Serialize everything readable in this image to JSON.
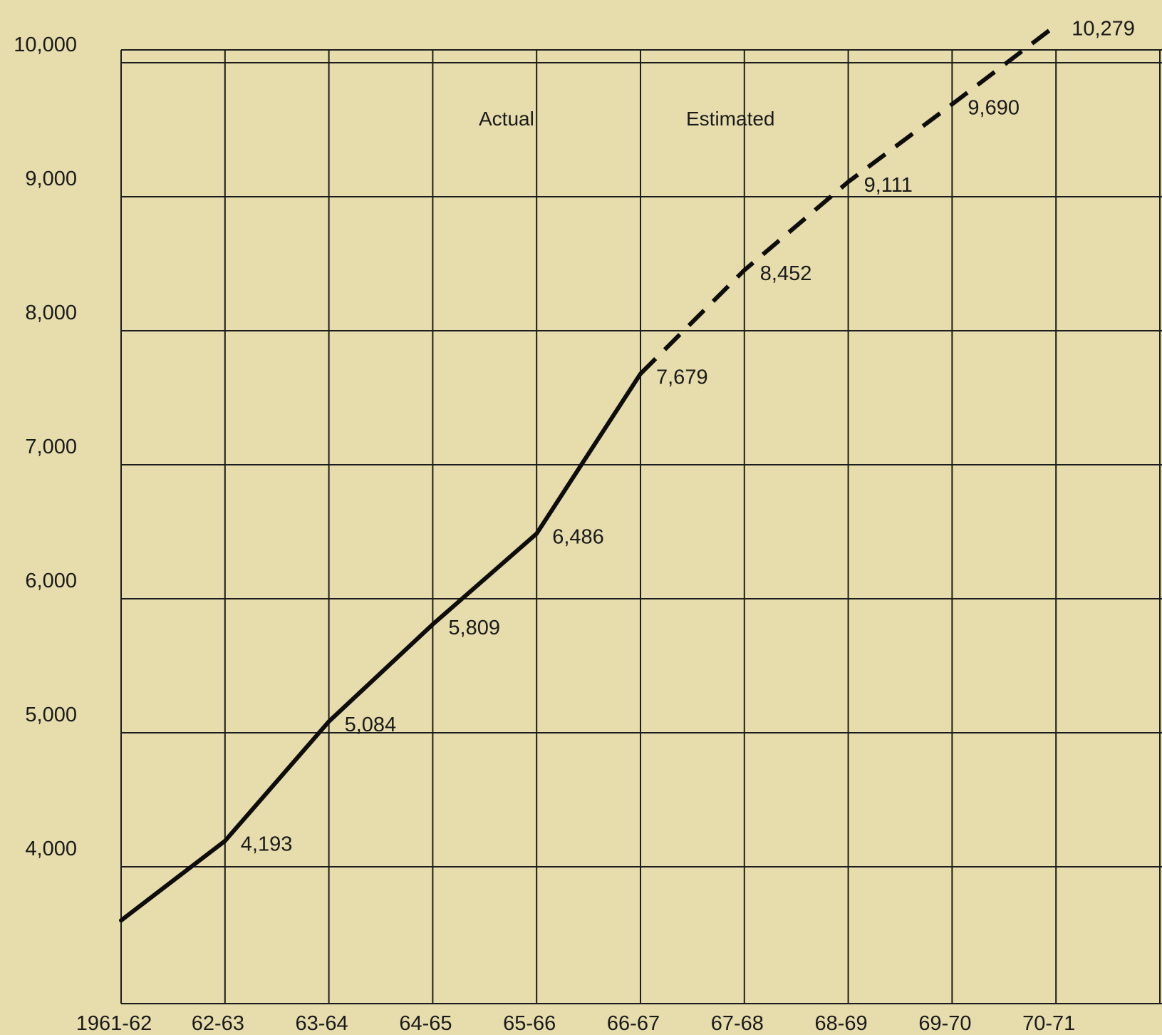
{
  "chart_data": {
    "type": "line",
    "title": "",
    "xlabel": "",
    "ylabel": "",
    "categories": [
      "1961-62",
      "62-63",
      "63-64",
      "64-65",
      "65-66",
      "66-67",
      "67-68",
      "68-69",
      "69-70",
      "70-71"
    ],
    "y_ticks": [
      "4,000",
      "5,000",
      "6,000",
      "7,000",
      "8,000",
      "9,000",
      "10,000"
    ],
    "y_tick_values": [
      4000,
      5000,
      6000,
      7000,
      8000,
      9000,
      10000
    ],
    "ylim": [
      3000,
      10300
    ],
    "grid": true,
    "series": [
      {
        "name": "Actual",
        "style": "solid",
        "values": [
          3600,
          4193,
          5084,
          5809,
          6486,
          7679,
          null,
          null,
          null,
          null
        ],
        "labels": [
          "",
          "4,193",
          "5,084",
          "5,809",
          "6,486",
          "7,679",
          "",
          "",
          "",
          ""
        ]
      },
      {
        "name": "Estimated",
        "style": "dashed",
        "values": [
          null,
          null,
          null,
          null,
          null,
          7679,
          8452,
          9111,
          9690,
          10279
        ],
        "labels": [
          "",
          "",
          "",
          "",
          "",
          "",
          "8,452",
          "9,111",
          "9,690",
          "10,279"
        ]
      }
    ],
    "colors": {
      "background": "#e6dcac",
      "line": "#0d0d0d",
      "grid": "#1c1c1c"
    }
  }
}
